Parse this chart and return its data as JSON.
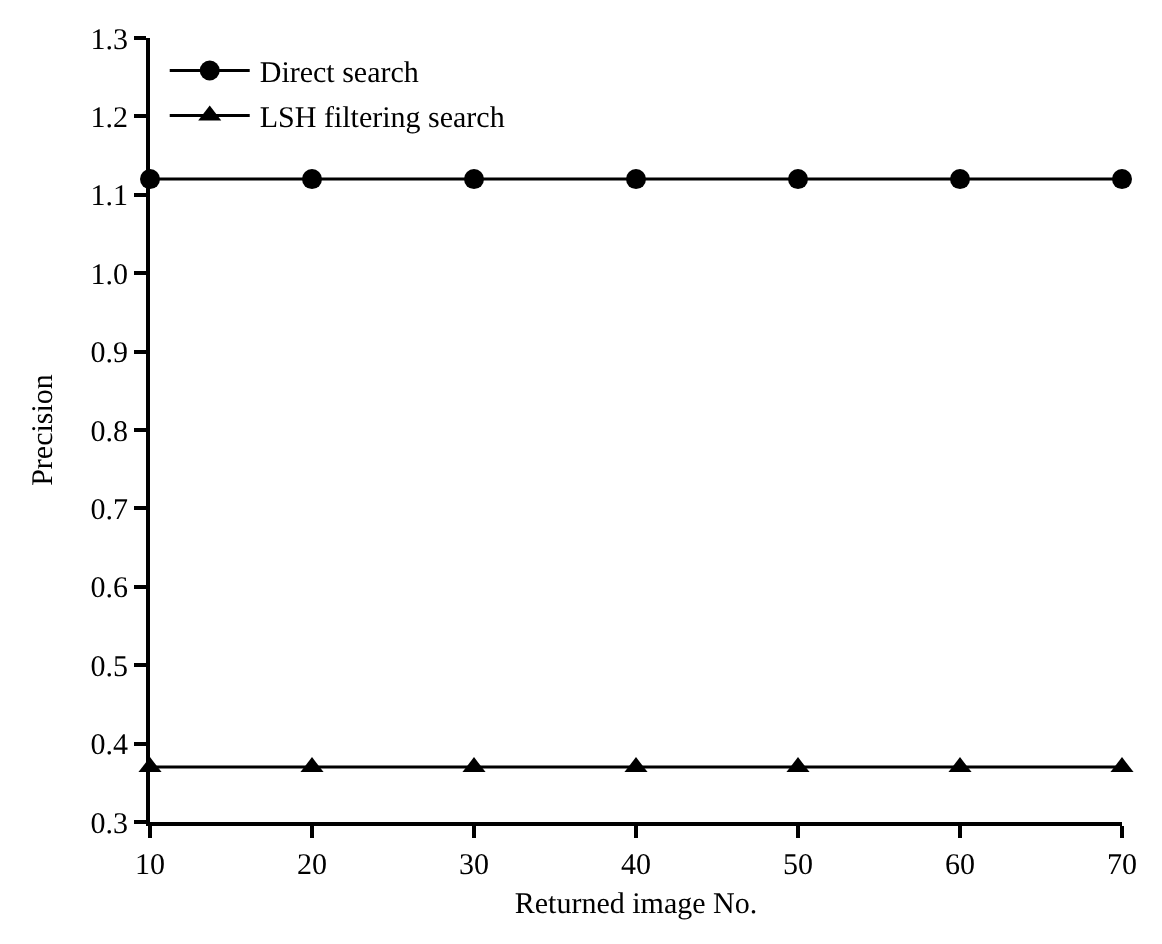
{
  "chart_data": {
    "type": "line",
    "xlabel": "Returned image No.",
    "ylabel": "Precision",
    "x": [
      10,
      20,
      30,
      40,
      50,
      60,
      70
    ],
    "series": [
      {
        "name": "Direct search",
        "color": "#000000",
        "marker": "circle",
        "values": [
          1.12,
          1.12,
          1.12,
          1.12,
          1.12,
          1.12,
          1.12
        ]
      },
      {
        "name": "LSH filtering search",
        "color": "#000000",
        "marker": "triangle",
        "values": [
          0.37,
          0.37,
          0.37,
          0.37,
          0.37,
          0.37,
          0.37
        ]
      }
    ],
    "xlim": [
      10,
      70
    ],
    "xticks": [
      10,
      20,
      30,
      40,
      50,
      60,
      70
    ],
    "ylim": [
      0.3,
      1.3
    ],
    "yticks": [
      {
        "value": 0.3,
        "label": "0.3"
      },
      {
        "value": 0.4,
        "label": "0.4"
      },
      {
        "value": 0.5,
        "label": "0.5"
      },
      {
        "value": 0.6,
        "label": "0.6"
      },
      {
        "value": 0.7,
        "label": "0.7"
      },
      {
        "value": 0.8,
        "label": "0.8"
      },
      {
        "value": 0.9,
        "label": "0.9"
      },
      {
        "value": 1.0,
        "label": "1.0"
      },
      {
        "value": 1.1,
        "label": "1.1"
      },
      {
        "value": 1.2,
        "label": "1.2"
      },
      {
        "value": 1.3,
        "label": "1.3"
      }
    ],
    "legend": "top left",
    "line_style": "solid"
  }
}
